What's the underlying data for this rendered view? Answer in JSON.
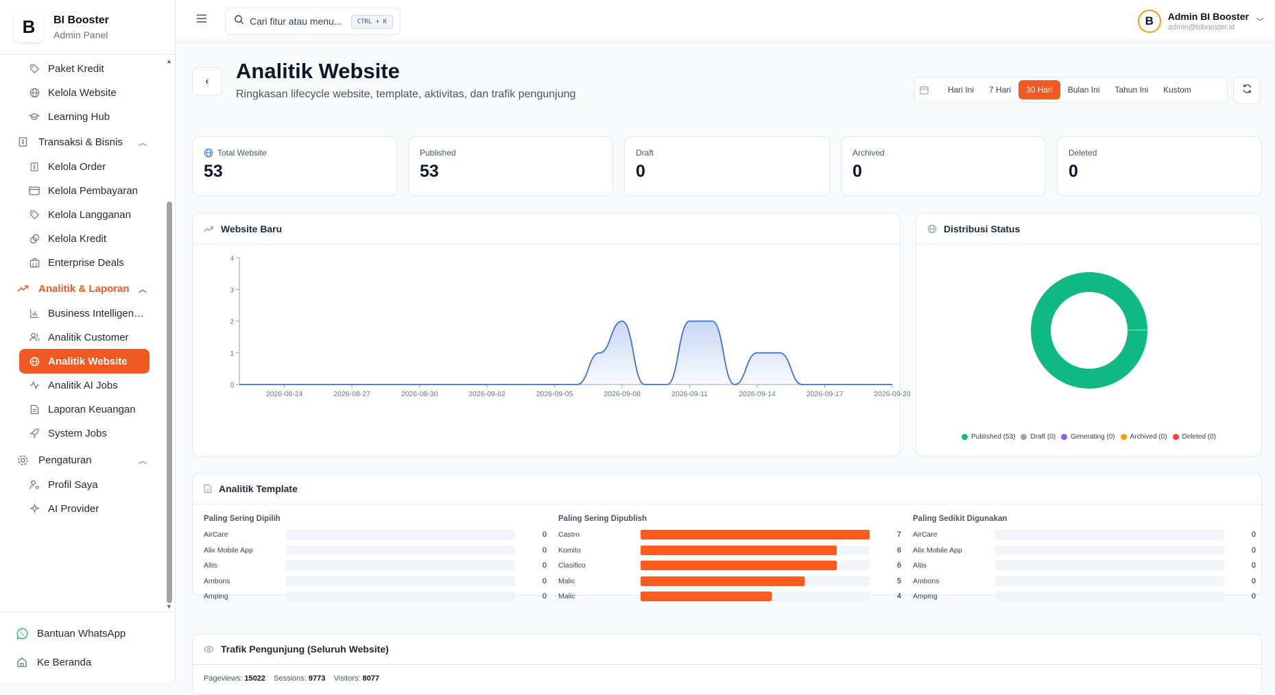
{
  "brand": {
    "title": "BI Booster",
    "subtitle": "Admin Panel",
    "logo_letter": "B"
  },
  "sidebar": {
    "items": [
      {
        "label": "Paket Kredit",
        "icon": "tag-icon"
      },
      {
        "label": "Kelola Website",
        "icon": "globe-icon"
      },
      {
        "label": "Learning Hub",
        "icon": "graduation-cap-icon"
      }
    ],
    "sections": [
      {
        "label": "Transaksi & Bisnis",
        "icon": "receipt-icon"
      },
      {
        "label": "Analitik & Laporan",
        "icon": "trending-up-icon"
      },
      {
        "label": "Pengaturan",
        "icon": "settings-icon"
      }
    ],
    "transaksi_items": [
      {
        "label": "Kelola Order",
        "icon": "receipt-icon"
      },
      {
        "label": "Kelola Pembayaran",
        "icon": "credit-card-icon"
      },
      {
        "label": "Kelola Langganan",
        "icon": "tag-icon"
      },
      {
        "label": "Kelola Kredit",
        "icon": "coins-icon"
      },
      {
        "label": "Enterprise Deals",
        "icon": "building-icon"
      }
    ],
    "analitik_items": [
      {
        "label": "Business Intelligen…",
        "icon": "bar-chart-icon"
      },
      {
        "label": "Analitik Customer",
        "icon": "users-icon"
      },
      {
        "label": "Analitik Website",
        "icon": "globe-icon"
      },
      {
        "label": "Analitik AI Jobs",
        "icon": "activity-icon"
      },
      {
        "label": "Laporan Keuangan",
        "icon": "file-text-icon"
      },
      {
        "label": "System Jobs",
        "icon": "rocket-icon"
      }
    ],
    "pengaturan_items": [
      {
        "label": "Profil Saya",
        "icon": "user-cog-icon"
      },
      {
        "label": "AI Provider",
        "icon": "bot-icon"
      }
    ],
    "footer": [
      {
        "label": "Bantuan WhatsApp",
        "icon": "whatsapp-icon"
      },
      {
        "label": "Ke Beranda",
        "icon": "home-icon"
      }
    ]
  },
  "topbar": {
    "search_placeholder": "Cari fitur atau menu...",
    "shortcut": "CTRL + K",
    "user_name": "Admin BI Booster",
    "user_email": "admin@bibooster.id",
    "avatar_letter": "B"
  },
  "page": {
    "title": "Analitik Website",
    "subtitle": "Ringkasan lifecycle website, template, aktivitas, dan trafik pengunjung",
    "ranges": [
      "Hari Ini",
      "7 Hari",
      "30 Hari",
      "Bulan Ini",
      "Tahun Ini",
      "Kustom"
    ],
    "active_range": "30 Hari"
  },
  "kpis": [
    {
      "label": "Total Website",
      "value": "53"
    },
    {
      "label": "Published",
      "value": "53"
    },
    {
      "label": "Draft",
      "value": "0"
    },
    {
      "label": "Archived",
      "value": "0"
    },
    {
      "label": "Deleted",
      "value": "0"
    }
  ],
  "website_baru": {
    "title": "Website Baru",
    "chart_data": {
      "type": "area",
      "x": [
        "2026-08-22",
        "2026-08-23",
        "2026-08-24",
        "2026-08-25",
        "2026-08-26",
        "2026-08-27",
        "2026-08-28",
        "2026-08-29",
        "2026-08-30",
        "2026-08-31",
        "2026-09-01",
        "2026-09-02",
        "2026-09-03",
        "2026-09-04",
        "2026-09-05",
        "2026-09-06",
        "2026-09-07",
        "2026-09-08",
        "2026-09-09",
        "2026-09-10",
        "2026-09-11",
        "2026-09-12",
        "2026-09-13",
        "2026-09-14",
        "2026-09-15",
        "2026-09-16",
        "2026-09-17",
        "2026-09-18",
        "2026-09-19",
        "2026-09-20"
      ],
      "values": [
        0,
        0,
        0,
        0,
        0,
        0,
        0,
        0,
        0,
        0,
        0,
        0,
        0,
        0,
        0,
        0,
        1,
        2,
        0,
        0,
        2,
        2,
        0,
        1,
        1,
        0,
        0,
        0,
        0,
        0
      ],
      "x_ticks": [
        "2026-08-24",
        "2026-08-27",
        "2026-08-30",
        "2026-09-02",
        "2026-09-05",
        "2026-09-08",
        "2026-09-11",
        "2026-09-14",
        "2026-09-17",
        "2026-09-20"
      ],
      "y_ticks": [
        "0",
        "1",
        "2",
        "3",
        "4"
      ],
      "ylim": [
        0,
        4
      ],
      "color": "#3b6fd8"
    }
  },
  "distribusi": {
    "title": "Distribusi Status",
    "chart_data": {
      "type": "pie",
      "categories": [
        "Published",
        "Draft",
        "Generating",
        "Archived",
        "Deleted"
      ],
      "values": [
        53,
        0,
        0,
        0,
        0
      ],
      "legend": [
        "Published (53)",
        "Draft (0)",
        "Generating (0)",
        "Archived (0)",
        "Deleted (0)"
      ],
      "colors": [
        "#10b981",
        "#94a3b8",
        "#8b5cf6",
        "#f59e0b",
        "#ef4444"
      ]
    }
  },
  "template": {
    "title": "Analitik Template",
    "columns": [
      {
        "heading": "Paling Sering Dipilih",
        "max": 7,
        "rows": [
          {
            "name": "AirCare",
            "value": 0
          },
          {
            "name": "Alix Mobile App",
            "value": 0
          },
          {
            "name": "Altis",
            "value": 0
          },
          {
            "name": "Ambons",
            "value": 0
          },
          {
            "name": "Amping",
            "value": 0
          }
        ]
      },
      {
        "heading": "Paling Sering Dipublish",
        "max": 7,
        "rows": [
          {
            "name": "Castro",
            "value": 7
          },
          {
            "name": "Komito",
            "value": 6
          },
          {
            "name": "Clasifico",
            "value": 6
          },
          {
            "name": "Malic",
            "value": 5
          },
          {
            "name": "Malic",
            "value": 4
          }
        ]
      },
      {
        "heading": "Paling Sedikit Digunakan",
        "max": 7,
        "rows": [
          {
            "name": "AirCare",
            "value": 0
          },
          {
            "name": "Alix Mobile App",
            "value": 0
          },
          {
            "name": "Altis",
            "value": 0
          },
          {
            "name": "Ambons",
            "value": 0
          },
          {
            "name": "Amping",
            "value": 0
          }
        ]
      }
    ]
  },
  "traffic": {
    "title": "Trafik Pengunjung (Seluruh Website)",
    "pageviews_label": "Pageviews:",
    "pageviews": "15022",
    "sessions_label": "Sessions:",
    "sessions": "9773",
    "visitors_label": "Visitors:",
    "visitors": "8077"
  }
}
